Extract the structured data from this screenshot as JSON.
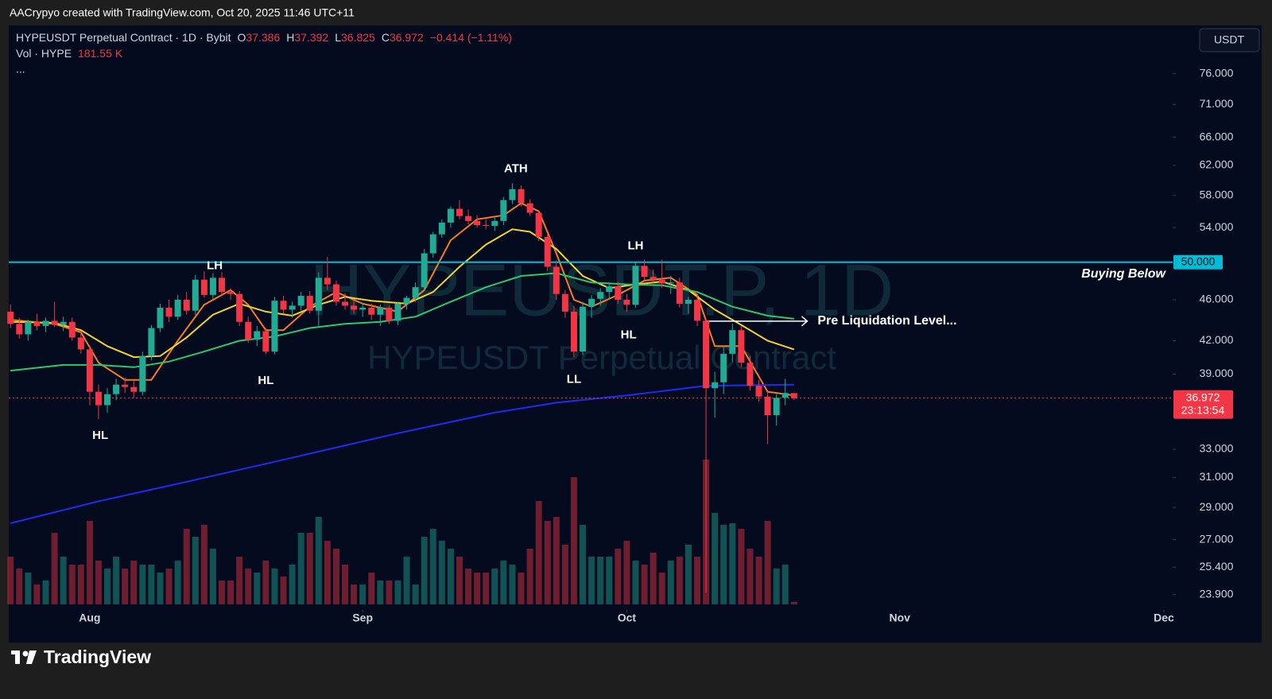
{
  "header_bar": "AACrypyo created with TradingView.com, Oct 20, 2025 11:46 UTC+11",
  "footer_logo": "TradingView",
  "currency": "USDT",
  "chart_data": {
    "type": "candlestick",
    "legend": {
      "symbol": "HYPEUSDT Perpetual Contract · 1D · Bybit",
      "ohlc_letters": [
        "O",
        "H",
        "L",
        "C"
      ],
      "change": "−0.414 (−1.11%)",
      "more": "..."
    },
    "watermark": [
      "HYPEUSDT.P, 1D",
      "HYPEUSDT Perpetual Contract"
    ],
    "up_color": "#22ab94",
    "down_color": "#f23645",
    "log_scale": true,
    "grid": false,
    "xlim": [
      -0.2,
      132
    ],
    "ylim": [
      23.18,
      84.9
    ],
    "xticks": [
      {
        "value": 9,
        "label": "Aug"
      },
      {
        "value": 40,
        "label": "Sep"
      },
      {
        "value": 70,
        "label": "Oct"
      },
      {
        "value": 101,
        "label": "Nov"
      },
      {
        "value": 131,
        "label": "Dec"
      }
    ],
    "yticks": [
      {
        "value": 76,
        "label": "76.000"
      },
      {
        "value": 71,
        "label": "71.000"
      },
      {
        "value": 66,
        "label": "66.000"
      },
      {
        "value": 62,
        "label": "62.000"
      },
      {
        "value": 58,
        "label": "58.000"
      },
      {
        "value": 54,
        "label": "54.000"
      },
      {
        "value": 46,
        "label": "46.000"
      },
      {
        "value": 42,
        "label": "42.000"
      },
      {
        "value": 39,
        "label": "39.000"
      },
      {
        "value": 33,
        "label": "33.000"
      },
      {
        "value": 31,
        "label": "31.000"
      },
      {
        "value": 29,
        "label": "29.000"
      },
      {
        "value": 27,
        "label": "27.000"
      },
      {
        "value": 25.4,
        "label": "25.400"
      },
      {
        "value": 23.9,
        "label": "23.900"
      }
    ],
    "x": [
      0,
      1,
      2,
      3,
      4,
      5,
      6,
      7,
      8,
      9,
      10,
      11,
      12,
      13,
      14,
      15,
      16,
      17,
      18,
      19,
      20,
      21,
      22,
      23,
      24,
      25,
      26,
      27,
      28,
      29,
      30,
      31,
      32,
      33,
      34,
      35,
      36,
      37,
      38,
      39,
      40,
      41,
      42,
      43,
      44,
      45,
      46,
      47,
      48,
      49,
      50,
      51,
      52,
      53,
      54,
      55,
      56,
      57,
      58,
      59,
      60,
      61,
      62,
      63,
      64,
      65,
      66,
      67,
      68,
      69,
      70,
      71,
      72,
      73,
      74,
      75,
      76,
      77,
      78,
      79,
      80,
      81,
      82,
      83,
      84,
      85,
      86,
      87,
      88,
      89
    ],
    "open": [
      44.8,
      43.6,
      42.6,
      43.8,
      43.4,
      43.9,
      43.5,
      43.8,
      42.3,
      41.2,
      37.5,
      36.4,
      37.3,
      38.1,
      37.9,
      37.5,
      40.6,
      43.2,
      45.2,
      44.3,
      46.0,
      44.9,
      48.1,
      46.5,
      48.3,
      46.8,
      46.6,
      43.8,
      42.1,
      42.9,
      41.0,
      45.9,
      45.0,
      45.4,
      46.4,
      44.9,
      48.3,
      47.6,
      45.8,
      45.4,
      45.0,
      45.2,
      44.5,
      45.2,
      43.9,
      45.6,
      46.2,
      47.3,
      51.0,
      53.2,
      54.6,
      56.3,
      55.4,
      54.8,
      54.3,
      54.2,
      54.8,
      57.4,
      58.8,
      57.0,
      55.8,
      52.9,
      49.5,
      46.6,
      44.8,
      41.0,
      45.3,
      46.1,
      46.8,
      47.4,
      46.0,
      45.5,
      49.6,
      48.4,
      48.1,
      47.7,
      47.8,
      45.6,
      46.0,
      43.9,
      37.8,
      38.3,
      40.8,
      43.0,
      40.0,
      38.0,
      37.1,
      35.6,
      37.0,
      37.386
    ],
    "high": [
      45.5,
      44.2,
      44.0,
      44.6,
      44.2,
      45.8,
      44.3,
      44.2,
      42.9,
      41.6,
      38.1,
      37.8,
      38.6,
      38.7,
      38.4,
      41.0,
      43.5,
      45.6,
      46.0,
      46.5,
      46.8,
      48.6,
      49.0,
      48.8,
      48.9,
      47.2,
      46.9,
      44.3,
      43.4,
      43.2,
      46.3,
      46.4,
      45.8,
      46.8,
      46.9,
      48.9,
      50.6,
      48.0,
      46.7,
      45.9,
      45.7,
      45.6,
      45.5,
      45.4,
      45.8,
      46.4,
      47.8,
      51.5,
      53.5,
      55.0,
      56.6,
      57.4,
      56.2,
      55.5,
      55.0,
      55.3,
      57.8,
      59.6,
      59.3,
      57.5,
      56.0,
      53.3,
      50.2,
      47.0,
      45.4,
      45.8,
      46.5,
      47.2,
      47.8,
      47.9,
      46.6,
      50.0,
      50.3,
      49.2,
      50.3,
      48.5,
      48.3,
      46.3,
      46.5,
      44.1,
      39.2,
      41.5,
      43.6,
      43.4,
      40.6,
      38.5,
      37.5,
      37.3,
      38.6,
      37.392
    ],
    "low": [
      43.2,
      42.2,
      42.0,
      43.0,
      42.8,
      43.3,
      42.9,
      42.0,
      40.8,
      36.4,
      35.3,
      35.8,
      36.8,
      37.4,
      37.0,
      37.2,
      40.2,
      42.8,
      43.8,
      44.0,
      44.5,
      44.5,
      46.2,
      46.0,
      46.5,
      46.0,
      43.4,
      41.8,
      41.5,
      40.8,
      40.8,
      44.6,
      44.2,
      44.9,
      44.6,
      43.4,
      47.0,
      45.4,
      45.0,
      44.6,
      44.3,
      44.0,
      43.4,
      43.6,
      43.5,
      45.0,
      45.8,
      46.9,
      50.5,
      52.8,
      54.0,
      55.0,
      54.4,
      54.0,
      53.8,
      53.6,
      54.3,
      56.9,
      56.6,
      55.4,
      52.4,
      49.0,
      46.0,
      44.2,
      40.5,
      40.7,
      44.2,
      45.4,
      46.0,
      45.6,
      44.8,
      45.2,
      48.0,
      47.8,
      47.2,
      46.6,
      45.2,
      44.6,
      43.4,
      24.0,
      35.4,
      37.3,
      40.0,
      39.6,
      37.6,
      36.7,
      33.4,
      34.8,
      36.4,
      36.825
    ],
    "close": [
      43.6,
      42.6,
      43.8,
      43.4,
      43.9,
      43.5,
      43.8,
      42.3,
      41.2,
      37.5,
      36.4,
      37.3,
      38.1,
      37.9,
      37.5,
      40.6,
      43.2,
      45.2,
      44.3,
      46.0,
      44.9,
      48.1,
      46.5,
      48.3,
      46.8,
      46.6,
      43.8,
      42.1,
      42.9,
      41.0,
      45.9,
      45.0,
      45.4,
      46.4,
      44.9,
      48.3,
      47.6,
      45.8,
      45.4,
      45.0,
      45.2,
      44.5,
      45.2,
      43.9,
      45.6,
      46.2,
      47.3,
      51.0,
      53.2,
      54.6,
      56.3,
      55.4,
      54.8,
      54.3,
      54.2,
      54.8,
      57.4,
      58.8,
      57.0,
      55.8,
      52.9,
      49.5,
      46.6,
      44.8,
      41.0,
      45.3,
      46.1,
      46.8,
      47.4,
      46.0,
      45.5,
      49.6,
      48.4,
      48.1,
      47.7,
      47.8,
      45.6,
      46.0,
      43.9,
      37.8,
      38.3,
      40.8,
      43.0,
      40.0,
      38.0,
      37.1,
      35.6,
      37.0,
      37.4,
      36.972
    ],
    "volume": {
      "name": "Vol · HYPE",
      "unit": "K",
      "values": [
        3600,
        2700,
        2400,
        1500,
        1800,
        5400,
        3600,
        3000,
        3000,
        6300,
        3300,
        2700,
        3600,
        2700,
        3300,
        3000,
        3000,
        2400,
        2700,
        3300,
        5700,
        5100,
        6000,
        4200,
        1800,
        1800,
        3600,
        2700,
        2400,
        3300,
        2700,
        2100,
        3000,
        5400,
        5400,
        6600,
        4800,
        4200,
        3000,
        1500,
        1500,
        2400,
        1800,
        1800,
        1800,
        3600,
        1500,
        5100,
        5700,
        4800,
        4200,
        3600,
        2700,
        2400,
        2400,
        2700,
        3300,
        3000,
        2400,
        4200,
        7800,
        6300,
        6600,
        4500,
        9600,
        6000,
        3600,
        3600,
        3600,
        4200,
        4800,
        3300,
        3000,
        3900,
        2400,
        3300,
        3600,
        4500,
        3600,
        10920,
        6900,
        6000,
        6120,
        5700,
        4200,
        3600,
        6300,
        2700,
        3000,
        181.55
      ]
    },
    "overlays": [
      {
        "color": "#f57c1f",
        "x": [
          0,
          5,
          8,
          10,
          13,
          16,
          19,
          22,
          25,
          27,
          29,
          31,
          34,
          37,
          40,
          44,
          47,
          50,
          53,
          56,
          58,
          60,
          62,
          64,
          66,
          69,
          72,
          75,
          78,
          80,
          83,
          86,
          89
        ],
        "values": [
          44.0,
          43.6,
          42.8,
          40.0,
          38.5,
          38.5,
          42.0,
          45.5,
          47.0,
          45.5,
          43.0,
          43.0,
          45.3,
          46.8,
          45.6,
          44.8,
          47.0,
          52.5,
          55.0,
          55.5,
          57.0,
          56.0,
          51.0,
          46.0,
          45.3,
          46.5,
          48.0,
          48.3,
          46.5,
          41.5,
          41.5,
          37.5,
          37.2
        ]
      },
      {
        "color": "#f2d22e",
        "x": [
          0,
          5,
          8,
          11,
          14,
          17,
          20,
          23,
          26,
          29,
          32,
          35,
          38,
          41,
          45,
          48,
          51,
          54,
          57,
          59,
          62,
          65,
          68,
          71,
          74,
          77,
          80,
          83,
          86,
          89
        ],
        "values": [
          43.8,
          43.7,
          43.0,
          41.5,
          40.5,
          40.6,
          42.3,
          44.5,
          45.6,
          44.8,
          44.4,
          45.5,
          46.3,
          45.9,
          45.6,
          46.8,
          49.5,
          52.0,
          53.8,
          53.5,
          51.5,
          48.5,
          47.2,
          47.6,
          47.9,
          47.0,
          45.0,
          43.5,
          42.0,
          41.2
        ]
      },
      {
        "color": "#2ec76b",
        "x": [
          0,
          6,
          10,
          14,
          18,
          22,
          26,
          30,
          34,
          38,
          42,
          46,
          50,
          54,
          58,
          62,
          66,
          70,
          74,
          78,
          82,
          86,
          89
        ],
        "values": [
          39.3,
          39.8,
          39.8,
          39.6,
          40.1,
          41.0,
          42.0,
          42.4,
          43.2,
          43.6,
          43.8,
          44.3,
          45.8,
          47.3,
          48.5,
          48.8,
          47.8,
          47.6,
          47.5,
          46.8,
          45.3,
          44.4,
          44.1
        ]
      },
      {
        "color": "#1f2cf0",
        "x": [
          0,
          10,
          20,
          30,
          44,
          55,
          62,
          70,
          79,
          89
        ],
        "values": [
          28.0,
          29.4,
          30.7,
          32.1,
          34.2,
          35.8,
          36.6,
          37.2,
          38.0,
          38.1
        ]
      }
    ],
    "hline": {
      "value": 50,
      "label": "50.000",
      "color": "#00bcd4",
      "text": "Buying Below"
    },
    "countdown": "23:13:54",
    "pre_liquidation": {
      "text": "Pre Liquidation Level...",
      "value": 43.87,
      "x": [
        79,
        90.5
      ]
    },
    "annotations": [
      {
        "text": "HL",
        "x": 10.2,
        "y": 34.0
      },
      {
        "text": "LH",
        "x": 23.2,
        "y": 49.6
      },
      {
        "text": "HL",
        "x": 29,
        "y": 38.4
      },
      {
        "text": "ATH",
        "x": 57.4,
        "y": 61.5
      },
      {
        "text": "LL",
        "x": 64,
        "y": 38.5
      },
      {
        "text": "LH",
        "x": 71,
        "y": 51.8
      },
      {
        "text": "HL",
        "x": 70.2,
        "y": 42.5
      }
    ]
  }
}
